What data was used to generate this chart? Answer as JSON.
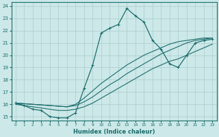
{
  "xlabel": "Humidex (Indice chaleur)",
  "xlim": [
    -0.5,
    23.5
  ],
  "ylim": [
    14.7,
    24.3
  ],
  "xticks": [
    0,
    1,
    2,
    3,
    4,
    5,
    6,
    7,
    8,
    9,
    10,
    11,
    12,
    13,
    14,
    15,
    16,
    17,
    18,
    19,
    20,
    21,
    22,
    23
  ],
  "yticks": [
    15,
    16,
    17,
    18,
    19,
    20,
    21,
    22,
    23,
    24
  ],
  "bg_color": "#cce8e8",
  "line_color": "#1a6b6b",
  "grid_color": "#aacccc",
  "line1_x": [
    0,
    1,
    2,
    3,
    4,
    5,
    6,
    7,
    8,
    9,
    10,
    11,
    12,
    13,
    14,
    15,
    16,
    17,
    18,
    19,
    20,
    21,
    22,
    23
  ],
  "line1_y": [
    16.1,
    15.9,
    15.6,
    15.5,
    15.0,
    14.9,
    14.9,
    15.3,
    17.3,
    19.2,
    21.8,
    22.2,
    22.5,
    23.8,
    23.2,
    22.7,
    21.2,
    20.5,
    19.3,
    19.0,
    20.0,
    21.0,
    21.2,
    21.3
  ],
  "line2_x": [
    0,
    1,
    2,
    3,
    4,
    5,
    6,
    7,
    8,
    9,
    10,
    11,
    12,
    13,
    14,
    15,
    16,
    17,
    18,
    19,
    20,
    21,
    22,
    23
  ],
  "line2_y": [
    16.0,
    15.9,
    15.8,
    15.7,
    15.6,
    15.5,
    15.5,
    15.6,
    15.8,
    16.1,
    16.5,
    16.9,
    17.3,
    17.7,
    18.1,
    18.5,
    18.9,
    19.2,
    19.5,
    19.7,
    20.0,
    20.3,
    20.6,
    20.9
  ],
  "line3_x": [
    0,
    1,
    2,
    3,
    4,
    5,
    6,
    7,
    8,
    9,
    10,
    11,
    12,
    13,
    14,
    15,
    16,
    17,
    18,
    19,
    20,
    21,
    22,
    23
  ],
  "line3_y": [
    16.1,
    16.05,
    16.0,
    15.95,
    15.9,
    15.85,
    15.8,
    15.9,
    16.2,
    16.6,
    17.1,
    17.6,
    18.0,
    18.5,
    18.9,
    19.3,
    19.7,
    20.1,
    20.4,
    20.7,
    21.0,
    21.2,
    21.3,
    21.4
  ],
  "line4_x": [
    0,
    1,
    2,
    3,
    4,
    5,
    6,
    7,
    8,
    9,
    10,
    11,
    12,
    13,
    14,
    15,
    16,
    17,
    18,
    19,
    20,
    21,
    22,
    23
  ],
  "line4_y": [
    16.1,
    16.05,
    16.0,
    15.95,
    15.9,
    15.85,
    15.8,
    16.0,
    16.5,
    17.1,
    17.7,
    18.2,
    18.7,
    19.2,
    19.6,
    20.0,
    20.3,
    20.6,
    20.9,
    21.1,
    21.2,
    21.3,
    21.4,
    21.4
  ]
}
